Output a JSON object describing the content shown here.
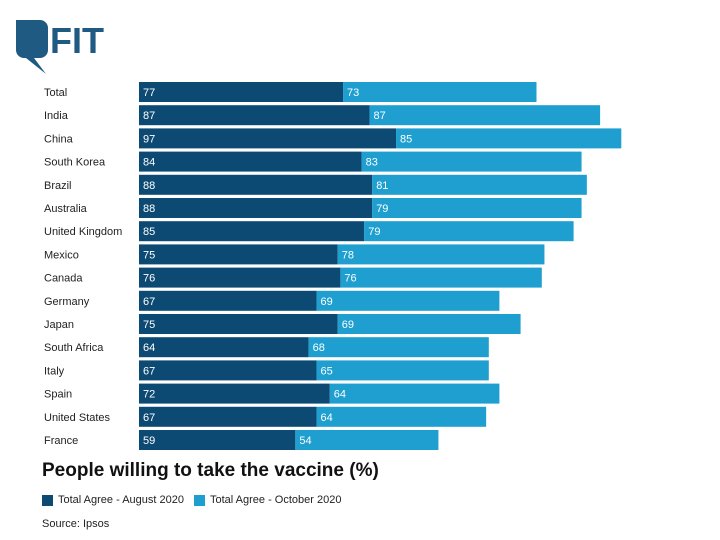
{
  "brand": {
    "logo_text": "FIT"
  },
  "colors": {
    "aug": "#0d4a73",
    "oct": "#1e9fd0",
    "logo": "#1f5a82"
  },
  "chart_data": {
    "type": "bar",
    "orientation": "horizontal",
    "stacked": true,
    "title": "People willing to take the vaccine (%)",
    "categories": [
      "Total",
      "India",
      "China",
      "South Korea",
      "Brazil",
      "Australia",
      "United Kingdom",
      "Mexico",
      "Canada",
      "Germany",
      "Japan",
      "South Africa",
      "Italy",
      "Spain",
      "United States",
      "France"
    ],
    "series": [
      {
        "name": "Total Agree - August 2020",
        "values": [
          77,
          87,
          97,
          84,
          88,
          88,
          85,
          75,
          76,
          67,
          75,
          64,
          67,
          72,
          67,
          59
        ]
      },
      {
        "name": "Total Agree - October 2020",
        "values": [
          73,
          87,
          85,
          83,
          81,
          79,
          79,
          78,
          76,
          69,
          69,
          68,
          65,
          64,
          64,
          54
        ]
      }
    ],
    "legend_position": "bottom-left",
    "grid": false,
    "data_labels": true
  },
  "source": "Source: Ipsos"
}
